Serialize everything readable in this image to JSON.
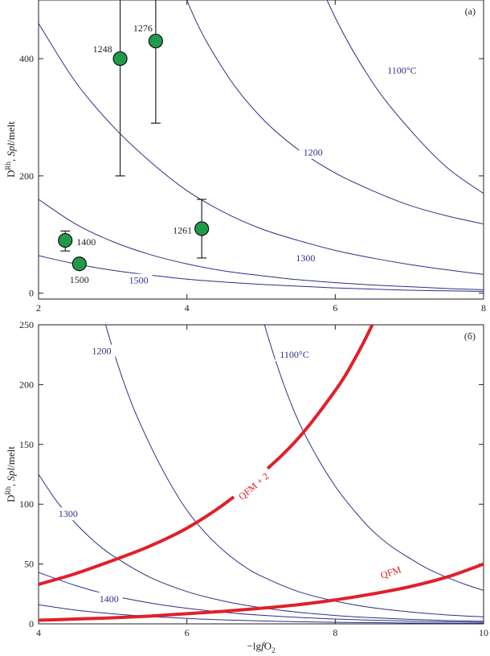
{
  "chart_data": [
    {
      "type": "line",
      "panel_label": "(а)",
      "ylabel": "D^Rh, Spl/melt",
      "ylabel_parts": {
        "d": "D",
        "sup": "Rh",
        "comma": ", ",
        "spl": "Spl",
        "rest": "/melt"
      },
      "xlim": [
        2,
        8
      ],
      "ylim": [
        -10,
        500
      ],
      "xticks": [
        "2",
        "4",
        "6",
        "8"
      ],
      "xtick_values": [
        2,
        4,
        6,
        8
      ],
      "yticks": [
        "0",
        "200",
        "400"
      ],
      "ytick_values": [
        0,
        200,
        400
      ],
      "isotherm_color": "#2b2f86",
      "isotherms": [
        {
          "label": "1100°C",
          "x": [
            4.0,
            4.5,
            5.0,
            5.5,
            6.0,
            6.5,
            7.0,
            7.5,
            8.0
          ],
          "y": [
            2000,
            1250,
            820,
            620,
            470,
            360,
            280,
            215,
            170
          ],
          "label_at": [
            6.9,
            380
          ]
        },
        {
          "label": "1200",
          "x": [
            2.0,
            2.5,
            3.0,
            3.5,
            4.0,
            4.5,
            5.0,
            5.5,
            6.0,
            6.5,
            7.0,
            7.5,
            8.0
          ],
          "y": [
            2200,
            1500,
            1000,
            700,
            500,
            380,
            300,
            245,
            205,
            175,
            150,
            132,
            118
          ],
          "label_at": [
            5.7,
            240
          ]
        },
        {
          "label": "",
          "x": [
            2.0,
            2.5,
            3.0,
            3.5,
            4.0,
            4.5,
            5.0,
            5.5,
            6.0,
            6.5,
            7.0,
            7.5,
            8.0
          ],
          "y": [
            460,
            360,
            285,
            225,
            175,
            138,
            110,
            90,
            73,
            60,
            49,
            40,
            32
          ],
          "label_at": null
        },
        {
          "label": "1300",
          "x": [
            2.0,
            2.5,
            3.0,
            3.5,
            4.0,
            4.5,
            5.0,
            5.5,
            6.0,
            6.5,
            7.0,
            7.5,
            8.0
          ],
          "y": [
            160,
            118,
            88,
            66,
            50,
            38,
            30,
            23,
            18,
            14,
            11,
            8,
            6
          ],
          "label_at": [
            5.6,
            60
          ]
        },
        {
          "label": "1500",
          "x": [
            2.0,
            2.5,
            3.0,
            3.5,
            4.0,
            4.5,
            5.0,
            5.5,
            6.0,
            6.5,
            7.0,
            7.5,
            8.0
          ],
          "y": [
            64,
            50,
            39,
            31,
            24,
            19,
            15,
            12,
            9,
            7,
            5,
            4,
            3
          ],
          "label_at": [
            3.35,
            22
          ]
        }
      ],
      "points": [
        {
          "label": "1248",
          "x": 3.1,
          "y": 400,
          "err_low": 200,
          "err_high": 500
        },
        {
          "label": "1276",
          "x": 3.58,
          "y": 430,
          "err_low": 290,
          "err_high": 500
        },
        {
          "label": "1261",
          "x": 4.2,
          "y": 110,
          "err_low": 60,
          "err_high": 160
        },
        {
          "label": "1400",
          "x": 2.36,
          "y": 90,
          "err_low": 72,
          "err_high": 106
        },
        {
          "label": "1500",
          "x": 2.55,
          "y": 50,
          "err_low": 44,
          "err_high": 56
        }
      ],
      "point_color": "#1f9a4a"
    },
    {
      "type": "line",
      "panel_label": "(б)",
      "ylabel": "D^Rh, Spl/melt",
      "ylabel_parts": {
        "d": "D",
        "sup": "Rh",
        "comma": ", ",
        "spl": "Spl",
        "rest": "/melt"
      },
      "xlabel": "−lg fO2",
      "xlabel_parts": {
        "lg": "−lg",
        "f": "f",
        "o": "O",
        "sub": "2"
      },
      "xlim": [
        4,
        10
      ],
      "ylim": [
        0,
        250
      ],
      "xticks": [
        "4",
        "6",
        "8",
        "10"
      ],
      "xtick_values": [
        4,
        6,
        8,
        10
      ],
      "yticks": [
        "0",
        "50",
        "100",
        "150",
        "200",
        "250"
      ],
      "ytick_values": [
        0,
        50,
        100,
        150,
        200,
        250
      ],
      "isotherm_color": "#2b2f86",
      "buffer_color": "#e0202a",
      "isotherms": [
        {
          "label": "1100°C",
          "x": [
            6.5,
            6.75,
            7.0,
            7.25,
            7.5,
            7.75,
            8.0,
            8.25,
            8.5,
            8.75,
            9.0,
            9.25,
            9.5,
            9.75,
            10.0
          ],
          "y": [
            390,
            320,
            260,
            210,
            170,
            140,
            115,
            95,
            78,
            65,
            55,
            46,
            39,
            33,
            28
          ],
          "label_at": [
            7.45,
            225
          ]
        },
        {
          "label": "1200",
          "x": [
            4.5,
            4.75,
            5.0,
            5.25,
            5.5,
            5.75,
            6.0,
            6.25,
            6.5,
            6.75,
            7.0,
            7.5,
            8.0,
            8.5,
            9.0,
            9.5,
            10.0
          ],
          "y": [
            350,
            285,
            230,
            185,
            150,
            120,
            95,
            76,
            61,
            49,
            40,
            27,
            19,
            13.5,
            10,
            7.5,
            5.8
          ],
          "label_at": [
            4.85,
            228
          ]
        },
        {
          "label": "1300",
          "x": [
            4.0,
            4.25,
            4.5,
            4.75,
            5.0,
            5.5,
            6.0,
            6.5,
            7.0,
            7.5,
            8.0,
            8.5,
            9.0,
            9.5,
            10.0
          ],
          "y": [
            125,
            102,
            84,
            69,
            57,
            39,
            27,
            19,
            13.5,
            9.7,
            7,
            5.1,
            3.8,
            2.8,
            2.1
          ],
          "label_at": [
            4.4,
            92
          ]
        },
        {
          "label": "",
          "x": [
            4.0,
            4.5,
            5.0,
            5.5,
            6.0,
            6.5,
            7.0,
            7.5,
            8.0,
            8.5,
            9.0,
            9.5,
            10.0
          ],
          "y": [
            43,
            32,
            23.5,
            17.5,
            13,
            9.7,
            7.2,
            5.4,
            4,
            3,
            2.3,
            1.7,
            1.3
          ],
          "label_at": null
        },
        {
          "label": "1400",
          "x": [
            4.0,
            4.5,
            5.0,
            5.5,
            6.0,
            6.5,
            7.0,
            7.5,
            8.0,
            8.5,
            9.0,
            9.5,
            10.0
          ],
          "y": [
            16,
            11.5,
            8.4,
            6.1,
            4.5,
            3.3,
            2.4,
            1.8,
            1.3,
            1,
            0.7,
            0.5,
            0.4
          ],
          "label_at": [
            4.95,
            21
          ]
        }
      ],
      "buffers": [
        {
          "label": "QFM + 2",
          "x": [
            4.0,
            4.5,
            5.0,
            5.5,
            6.0,
            6.5,
            7.0,
            7.5,
            8.0,
            8.25,
            8.5,
            8.6
          ],
          "y": [
            33,
            42,
            53,
            65,
            80,
            100,
            125,
            155,
            195,
            220,
            250,
            265
          ],
          "label_at": [
            6.9,
            115
          ],
          "label_angle": -40
        },
        {
          "label": "QFM",
          "x": [
            4.0,
            4.5,
            5.0,
            5.5,
            6.0,
            6.5,
            7.0,
            7.5,
            8.0,
            8.5,
            9.0,
            9.5,
            10.0
          ],
          "y": [
            3,
            4,
            5,
            6.5,
            8.5,
            10.5,
            13,
            16,
            20,
            25,
            31,
            39,
            50
          ],
          "label_at": [
            8.75,
            43
          ],
          "label_angle": -18
        }
      ]
    }
  ]
}
